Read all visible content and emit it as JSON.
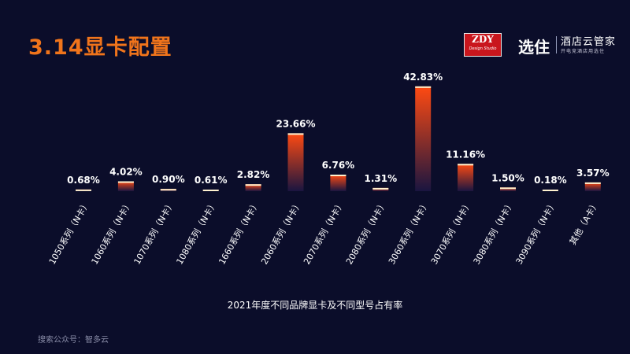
{
  "header": {
    "title": "3.14显卡配置",
    "logo_zdy": "ZDY",
    "logo_zdy_sub": "Design Studio",
    "brand_mark": "选住",
    "brand_name": "酒店云管家",
    "brand_slogan": "开电竞酒店用选住"
  },
  "footer": {
    "source": "搜索公众号：智多云"
  },
  "colors": {
    "background": "#0b0d2a",
    "title": "#f0741b",
    "bar_top": "#ff4a12",
    "bar_bottom": "#1a1540",
    "bar_cap": "#fff2d0"
  },
  "chart_data": {
    "type": "bar",
    "xlabel": "2021年度不同品牌显卡及不同型号占有率",
    "ylim": [
      0,
      45
    ],
    "categories": [
      "1050系列（N卡）",
      "1060系列（N卡）",
      "1070系列（N卡）",
      "1080系列（N卡）",
      "1660系列（N卡）",
      "2060系列（N卡）",
      "2070系列（N卡）",
      "2080系列（N卡）",
      "3060系列（N卡）",
      "3070系列（N卡）",
      "3080系列（N卡）",
      "3090系列（N卡）",
      "其他（A卡）"
    ],
    "values": [
      0.68,
      4.02,
      0.9,
      0.61,
      2.82,
      23.66,
      6.76,
      1.31,
      42.83,
      11.16,
      1.5,
      0.18,
      3.57
    ],
    "value_labels": [
      "0.68%",
      "4.02%",
      "0.90%",
      "0.61%",
      "2.82%",
      "23.66%",
      "6.76%",
      "1.31%",
      "42.83%",
      "11.16%",
      "1.50%",
      "0.18%",
      "3.57%"
    ]
  }
}
